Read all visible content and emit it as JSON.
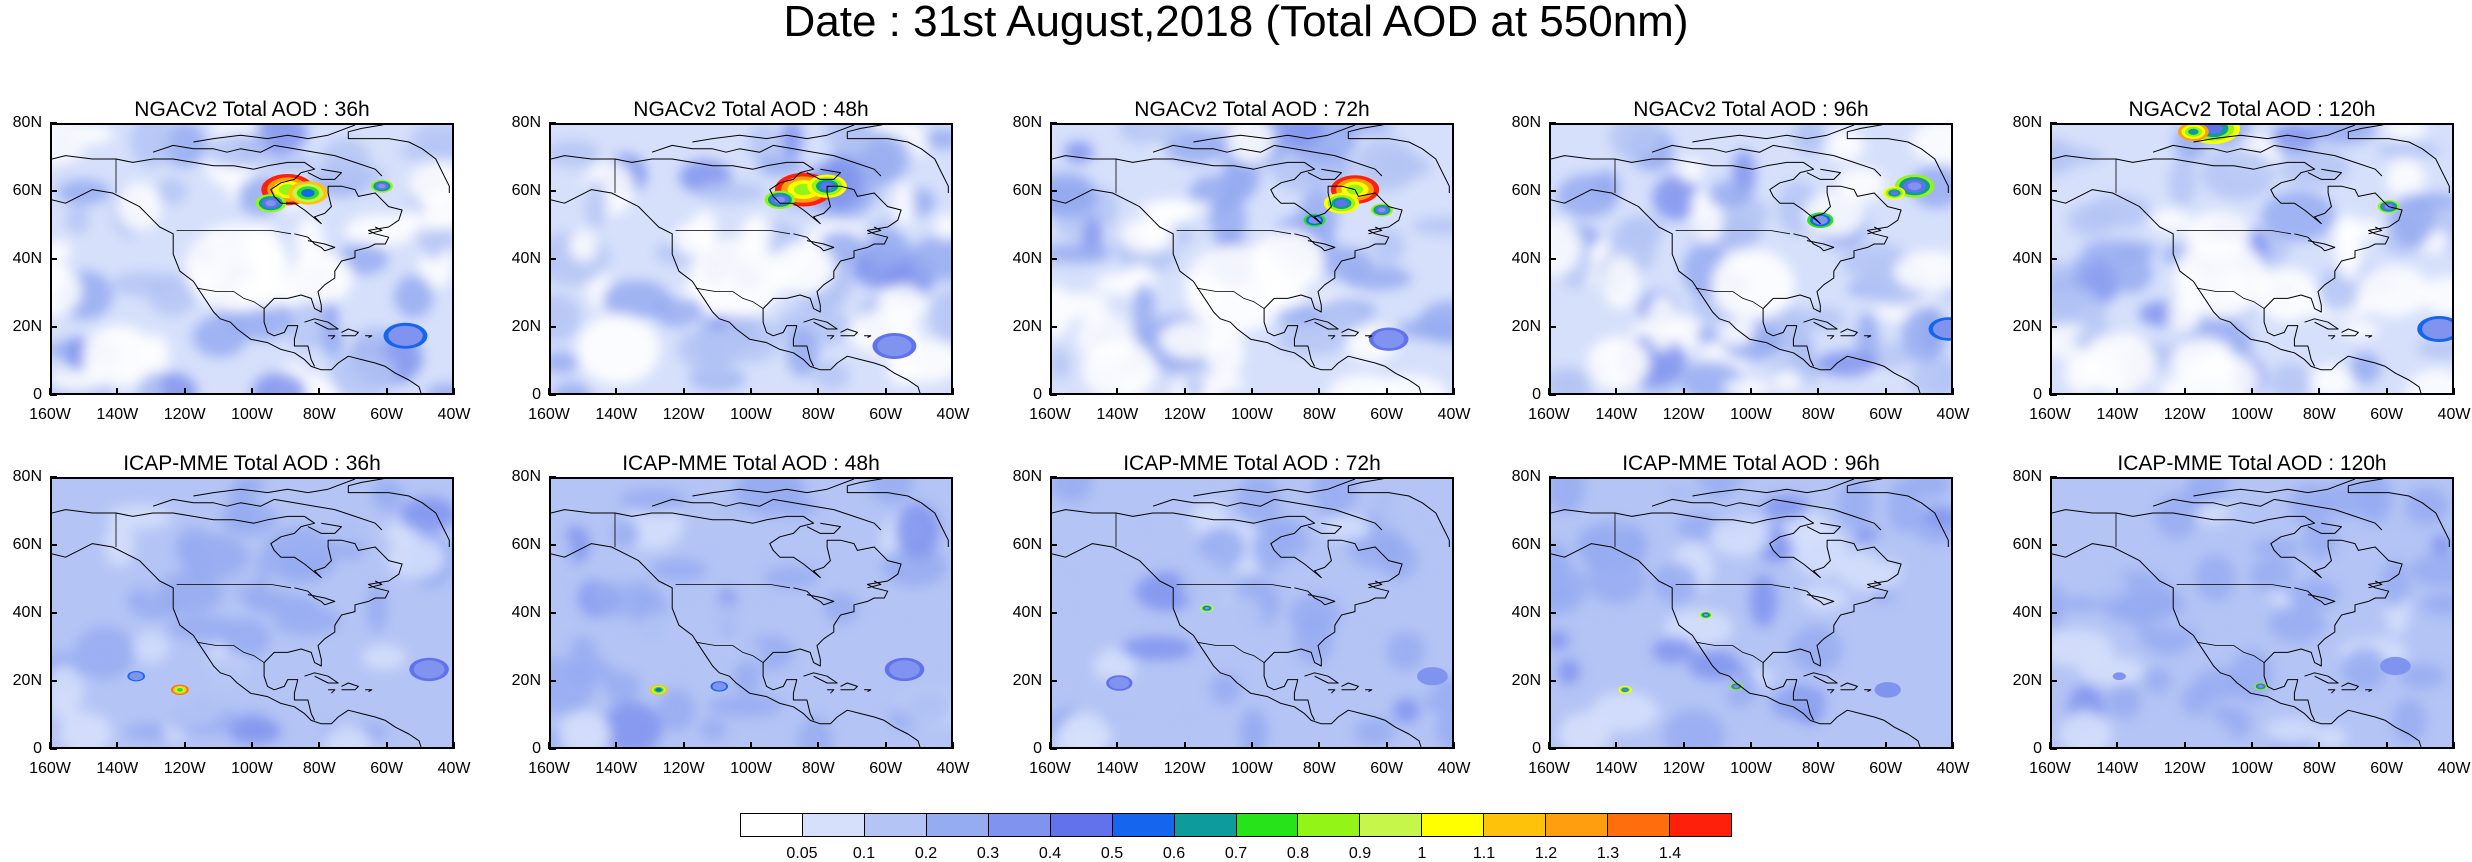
{
  "figure": {
    "title": "Date : 31st August,2018 (Total AOD at 550nm)"
  },
  "axes": {
    "lat_labels": [
      "0",
      "20N",
      "40N",
      "60N",
      "80N"
    ],
    "lat_values": [
      0,
      20,
      40,
      60,
      80
    ],
    "lon_labels": [
      "160W",
      "140W",
      "120W",
      "100W",
      "80W",
      "60W",
      "40W"
    ],
    "lon_values": [
      -160,
      -140,
      -120,
      -100,
      -80,
      -60,
      -40
    ],
    "lat_range": [
      0,
      80
    ],
    "lon_range": [
      -160,
      -40
    ]
  },
  "panels": [
    {
      "title": "NGACv2 Total AOD : 36h",
      "model": "NGACv2",
      "lead": "36h"
    },
    {
      "title": "NGACv2 Total AOD : 48h",
      "model": "NGACv2",
      "lead": "48h"
    },
    {
      "title": "NGACv2 Total AOD : 72h",
      "model": "NGACv2",
      "lead": "72h"
    },
    {
      "title": "NGACv2 Total AOD : 96h",
      "model": "NGACv2",
      "lead": "96h"
    },
    {
      "title": "NGACv2 Total AOD : 120h",
      "model": "NGACv2",
      "lead": "120h"
    },
    {
      "title": "ICAP-MME Total AOD : 36h",
      "model": "ICAP-MME",
      "lead": "36h"
    },
    {
      "title": "ICAP-MME Total AOD : 48h",
      "model": "ICAP-MME",
      "lead": "48h"
    },
    {
      "title": "ICAP-MME Total AOD : 72h",
      "model": "ICAP-MME",
      "lead": "72h"
    },
    {
      "title": "ICAP-MME Total AOD : 96h",
      "model": "ICAP-MME",
      "lead": "96h"
    },
    {
      "title": "ICAP-MME Total AOD : 120h",
      "model": "ICAP-MME",
      "lead": "120h"
    }
  ],
  "colorbar": {
    "labels": [
      "0.05",
      "0.1",
      "0.2",
      "0.3",
      "0.4",
      "0.5",
      "0.6",
      "0.7",
      "0.8",
      "0.9",
      "1",
      "1.1",
      "1.2",
      "1.3",
      "1.4"
    ],
    "colors": [
      "#ffffff",
      "#d6e0fb",
      "#b4c4f5",
      "#96acf1",
      "#8093ef",
      "#6272ec",
      "#1565ee",
      "#0d9b9b",
      "#27e41a",
      "#93f418",
      "#c6f64a",
      "#ffff00",
      "#ffc20a",
      "#ff9e0f",
      "#ff6e0c",
      "#ff200c"
    ]
  },
  "colors": {
    "coastline": "#000000",
    "background": "#ffffff"
  }
}
